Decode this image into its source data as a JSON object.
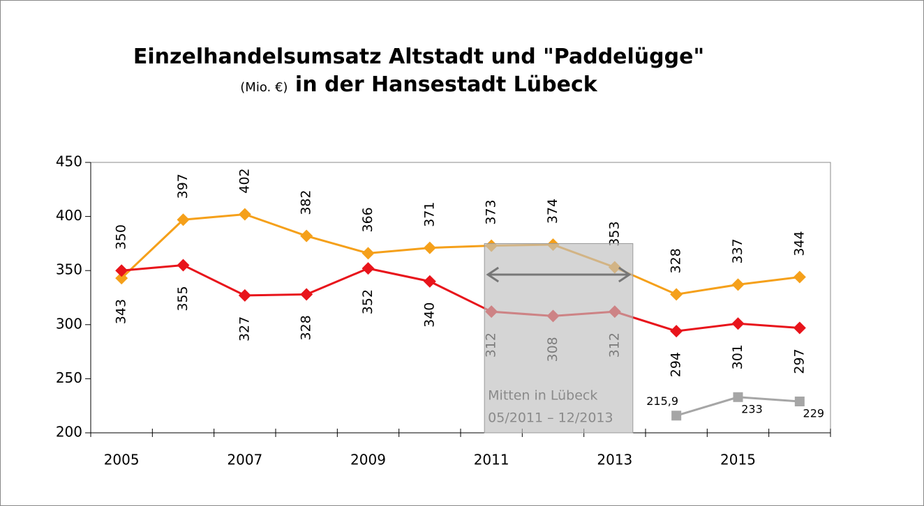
{
  "chart_data": {
    "type": "line",
    "title": "Einzelhandelsumsatz Altstadt und \"Paddelügge\"",
    "title_unit": "(Mio. €)",
    "title_end": "in der Hansestadt Lübeck",
    "categories": [
      "2005",
      null,
      "2007",
      null,
      "2009",
      null,
      "2011",
      null,
      "2013",
      null,
      "2015",
      null
    ],
    "series": [
      {
        "color": "#f5a01a",
        "marker": "diamond",
        "values": [
          343,
          397,
          402,
          382,
          366,
          371,
          373,
          374,
          353,
          328,
          337,
          344
        ]
      },
      {
        "color": "#e8141b",
        "marker": "diamond",
        "values": [
          350,
          355,
          327,
          328,
          352,
          340,
          312,
          308,
          312,
          294,
          301,
          297
        ]
      },
      {
        "color": "#a6a6a6",
        "marker": "square",
        "values": [
          null,
          null,
          null,
          null,
          null,
          null,
          null,
          null,
          null,
          215.9,
          233,
          229
        ],
        "value_labels": [
          null,
          null,
          null,
          null,
          null,
          null,
          null,
          null,
          null,
          "215,9",
          "233",
          "229"
        ]
      }
    ],
    "ylim": [
      200,
      450
    ],
    "yticks": [
      200,
      250,
      300,
      350,
      400,
      450
    ],
    "annotation": [
      "Mitten in Lübeck",
      "05/2011 – 12/2013"
    ]
  }
}
